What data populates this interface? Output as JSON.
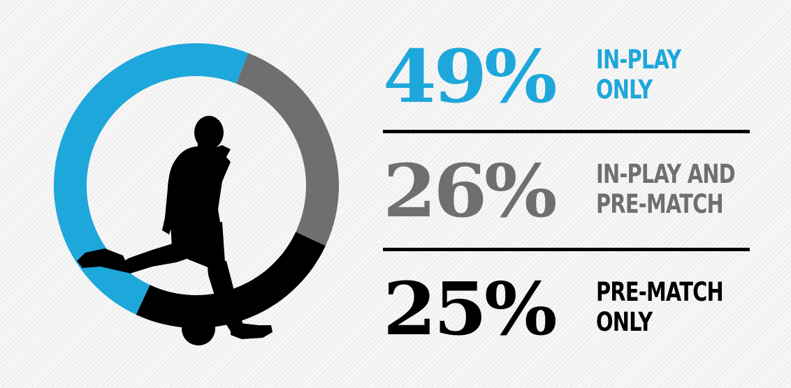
{
  "colors": {
    "blue": "#1ea7da",
    "gray": "#6f6f6f",
    "black": "#000000"
  },
  "chart_data": {
    "type": "pie",
    "categories": [
      "IN-PLAY ONLY",
      "IN-PLAY AND PRE-MATCH",
      "PRE-MATCH ONLY"
    ],
    "values": [
      49,
      26,
      25
    ],
    "unit": "%",
    "colors": [
      "#1ea7da",
      "#6f6f6f",
      "#000000"
    ]
  },
  "stats": [
    {
      "pct": "49%",
      "label_line1": "IN-PLAY",
      "label_line2": "ONLY",
      "color": "#1ea7da"
    },
    {
      "pct": "26%",
      "label_line1": "IN-PLAY AND",
      "label_line2": "PRE-MATCH",
      "color": "#6f6f6f"
    },
    {
      "pct": "25%",
      "label_line1": "PRE-MATCH",
      "label_line2": "ONLY",
      "color": "#000000"
    }
  ],
  "illustration": {
    "icon": "football-player-kicking-icon"
  }
}
